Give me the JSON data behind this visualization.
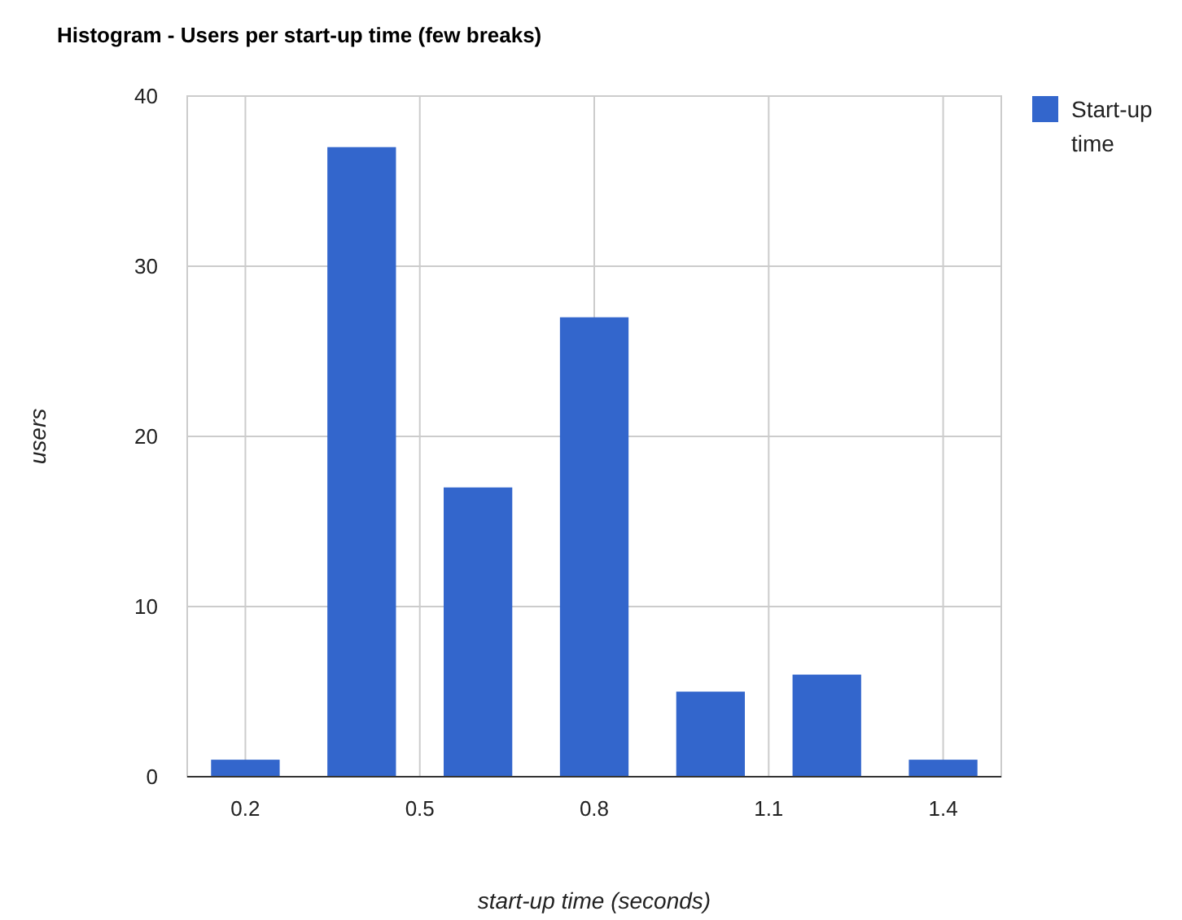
{
  "chart_data": {
    "type": "bar",
    "title": "Histogram - Users per start-up time (few breaks)",
    "xlabel": "start-up time (seconds)",
    "ylabel": "users",
    "x": [
      0.2,
      0.4,
      0.6,
      0.8,
      1.0,
      1.2,
      1.4
    ],
    "series": [
      {
        "name": "Start-up time",
        "color": "#3366cc",
        "values": [
          1,
          37,
          17,
          27,
          5,
          6,
          1
        ]
      }
    ],
    "xlim": [
      0.1,
      1.5
    ],
    "xticks": [
      0.2,
      0.5,
      0.8,
      1.1,
      1.4
    ],
    "ylim": [
      0,
      40
    ],
    "yticks": [
      0,
      10,
      20,
      30,
      40
    ],
    "grid": true,
    "legend": "top right"
  }
}
